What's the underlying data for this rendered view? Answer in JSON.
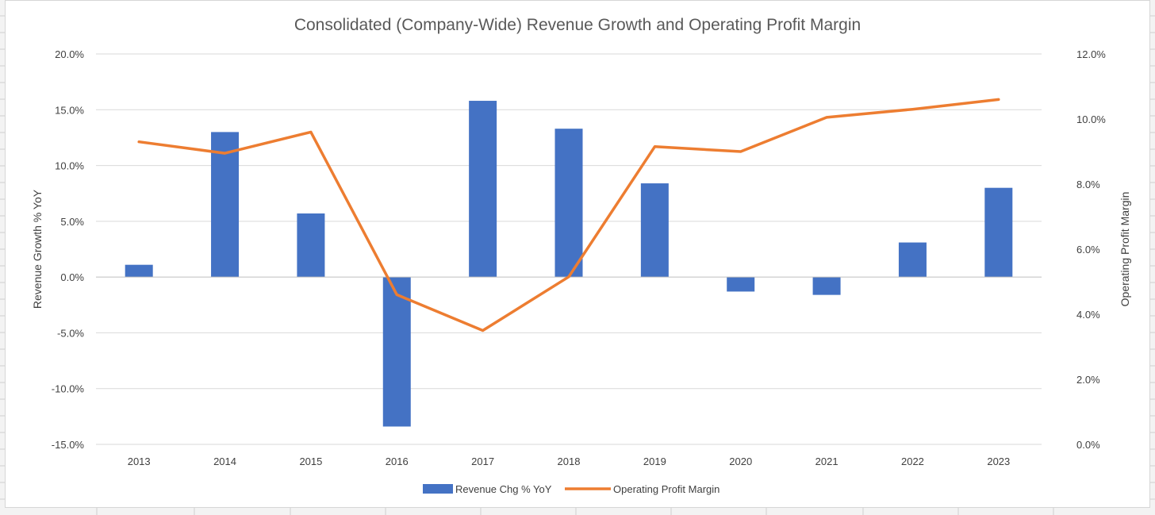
{
  "chart_data": {
    "type": "bar",
    "title": "Consolidated (Company-Wide) Revenue Growth and Operating Profit Margin",
    "categories": [
      "2013",
      "2014",
      "2015",
      "2016",
      "2017",
      "2018",
      "2019",
      "2020",
      "2021",
      "2022",
      "2023"
    ],
    "series": [
      {
        "name": "Revenue Chg % YoY",
        "type": "bar",
        "axis": "left",
        "color": "#4472C4",
        "values": [
          1.1,
          13.0,
          5.7,
          -13.4,
          15.8,
          13.3,
          8.4,
          -1.3,
          -1.6,
          3.1,
          8.0
        ]
      },
      {
        "name": "Operating Profit Margin",
        "type": "line",
        "axis": "right",
        "color": "#ED7D31",
        "values": [
          9.3,
          8.95,
          9.6,
          4.6,
          3.5,
          5.15,
          9.15,
          9.0,
          10.05,
          10.3,
          10.6
        ]
      }
    ],
    "y_left": {
      "label": "Revenue Growth % YoY",
      "range": [
        -15,
        20
      ],
      "ticks": [
        20,
        15,
        10,
        5,
        0,
        -5,
        -10,
        -15
      ],
      "tick_labels": [
        "20.0%",
        "15.0%",
        "10.0%",
        "5.0%",
        "0.0%",
        "-5.0%",
        "-10.0%",
        "-15.0%"
      ]
    },
    "y_right": {
      "label": "Operating Profit Margin",
      "range": [
        0,
        12
      ],
      "ticks": [
        12,
        10,
        8,
        6,
        4,
        2,
        0
      ],
      "tick_labels": [
        "12.0%",
        "10.0%",
        "8.0%",
        "6.0%",
        "4.0%",
        "2.0%",
        "0.0%"
      ]
    },
    "grid": true,
    "legend_position": "bottom"
  }
}
